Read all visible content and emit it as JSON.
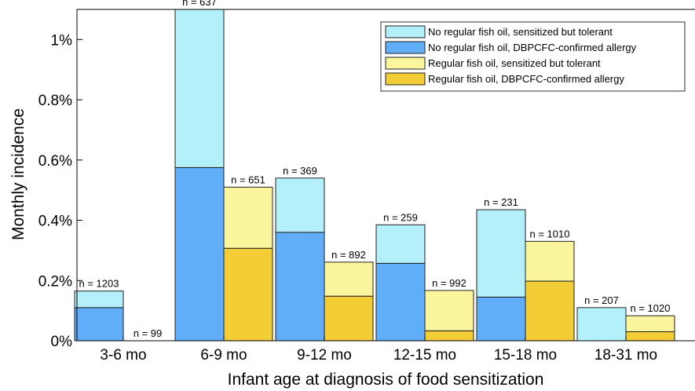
{
  "chart_data": {
    "type": "bar",
    "stacked": true,
    "title": "",
    "xlabel": "Infant age at diagnosis of food sensitization",
    "ylabel": "Monthly incidence",
    "ylim": [
      0,
      1.1
    ],
    "yticks": [
      0,
      0.2,
      0.4,
      0.6,
      0.8,
      1.0
    ],
    "ytick_labels": [
      "0%",
      "0.2%",
      "0.4%",
      "0.6%",
      "0.8%",
      "1%"
    ],
    "categories": [
      "3-6 mo",
      "6-9 mo",
      "9-12 mo",
      "12-15 mo",
      "15-18 mo",
      "18-31 mo"
    ],
    "groups": [
      {
        "name": "No regular fish oil",
        "n_labels": [
          "n = 1203",
          "n = 637",
          "n = 369",
          "n = 259",
          "n = 231",
          "n = 207"
        ],
        "confirmed_allergy": [
          0.11,
          0.575,
          0.36,
          0.257,
          0.145,
          0.0
        ],
        "sensitized_tolerant": [
          0.055,
          0.525,
          0.18,
          0.128,
          0.29,
          0.11
        ]
      },
      {
        "name": "Regular fish oil",
        "n_labels": [
          "n = 99",
          "n = 651",
          "n = 892",
          "n = 992",
          "n = 1010",
          "n = 1020"
        ],
        "confirmed_allergy": [
          0.0,
          0.307,
          0.148,
          0.033,
          0.198,
          0.03
        ],
        "sensitized_tolerant": [
          0.0,
          0.203,
          0.113,
          0.134,
          0.132,
          0.053
        ]
      }
    ],
    "legend": {
      "position": "top-right",
      "entries": [
        {
          "label": "No regular fish oil, sensitized but tolerant",
          "color": "#b3f0f9"
        },
        {
          "label": "No regular fish oil, DBPCFC-confirmed allergy",
          "color": "#61aef8"
        },
        {
          "label": "Regular fish oil, sensitized but tolerant",
          "color": "#fbf59e"
        },
        {
          "label": "Regular fish oil, DBPCFC-confirmed allergy",
          "color": "#f2cd35"
        }
      ]
    },
    "grid": false
  }
}
